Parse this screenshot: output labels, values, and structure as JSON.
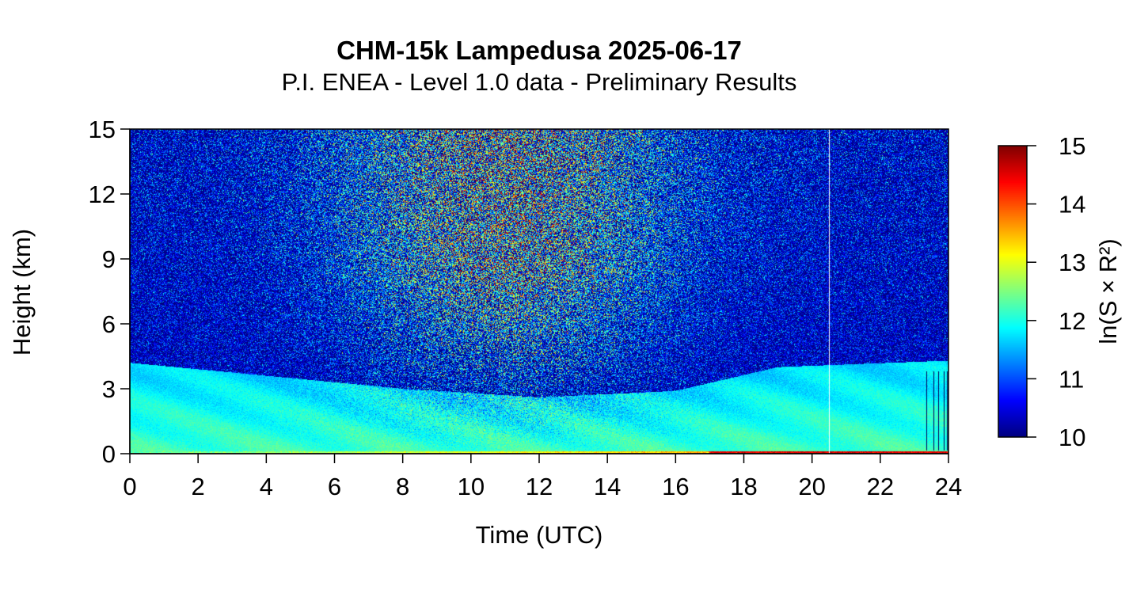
{
  "title": "CHM-15k Lampedusa 2025-06-17",
  "subtitle": "P.I. ENEA - Level 1.0 data - Preliminary Results",
  "chart_data": {
    "type": "heatmap",
    "title": "CHM-15k Lampedusa 2025-06-17",
    "subtitle": "P.I. ENEA - Level 1.0 data - Preliminary Results",
    "xlabel": "Time (UTC)",
    "ylabel": "Height (km)",
    "xlim": [
      0,
      24
    ],
    "ylim": [
      0,
      15
    ],
    "xticks": [
      "0",
      "2",
      "4",
      "6",
      "8",
      "10",
      "12",
      "14",
      "16",
      "18",
      "20",
      "22",
      "24"
    ],
    "yticks": [
      "0",
      "3",
      "6",
      "9",
      "12",
      "15"
    ],
    "colorbar": {
      "label": "ln(S × R²)",
      "range": [
        10,
        15
      ],
      "ticks": [
        "10",
        "11",
        "12",
        "13",
        "14",
        "15"
      ],
      "colormap": [
        "#00007F",
        "#0000FF",
        "#007FFF",
        "#00FFFF",
        "#7FFF7F",
        "#FFFF00",
        "#FF7F00",
        "#FF0000",
        "#7F0000"
      ]
    },
    "features": {
      "aerosol_layer_top_km": [
        [
          0,
          4.2
        ],
        [
          4,
          3.6
        ],
        [
          8,
          3.0
        ],
        [
          12,
          2.6
        ],
        [
          16,
          2.9
        ],
        [
          19,
          4.0
        ],
        [
          24,
          4.3
        ]
      ],
      "surface_layer_value": 14.5,
      "noise_peak_time_utc": 11,
      "data_gap_time_utc": 20.5,
      "spikes_time_utc": [
        23.35,
        23.55,
        23.7,
        23.85,
        23.95
      ]
    }
  }
}
